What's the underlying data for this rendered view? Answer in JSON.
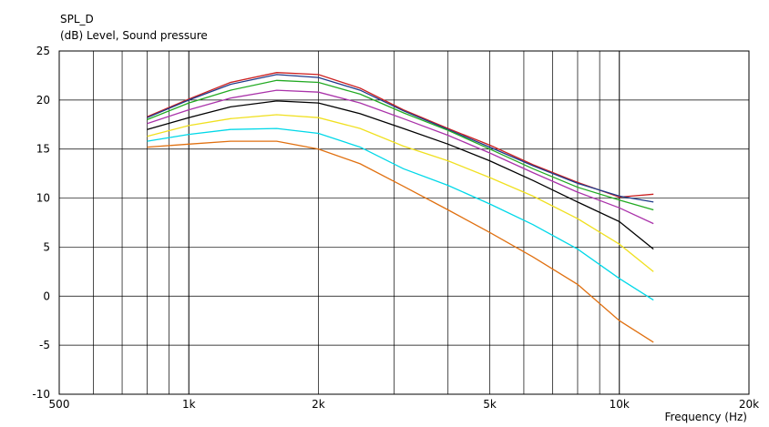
{
  "chart_data": {
    "type": "line",
    "title": "SPL_D",
    "subtitle": "(dB)  Level, Sound pressure",
    "xlabel": "Frequency  (Hz)",
    "ylabel": "",
    "x_scale": "log",
    "xlim": [
      500,
      20000
    ],
    "ylim": [
      -10,
      25
    ],
    "yticks": [
      25,
      20,
      15,
      10,
      5,
      0,
      -5,
      -10
    ],
    "xticks": [
      {
        "value": 500,
        "label": "500"
      },
      {
        "value": 1000,
        "label": "1k"
      },
      {
        "value": 2000,
        "label": "2k"
      },
      {
        "value": 5000,
        "label": "5k"
      },
      {
        "value": 10000,
        "label": "10k"
      },
      {
        "value": 20000,
        "label": "20k"
      }
    ],
    "grid": true,
    "x": [
      800,
      1000,
      1250,
      1600,
      2000,
      2500,
      3150,
      4000,
      5000,
      6300,
      8000,
      10000,
      12000
    ],
    "series": [
      {
        "color": "#cc2020",
        "values": [
          18.3,
          20.1,
          21.8,
          22.8,
          22.6,
          21.2,
          19.0,
          17.1,
          15.4,
          13.4,
          11.6,
          10.1,
          10.4
        ]
      },
      {
        "color": "#1e3a8a",
        "values": [
          18.2,
          20.0,
          21.6,
          22.6,
          22.3,
          21.0,
          18.9,
          17.0,
          15.2,
          13.3,
          11.5,
          10.2,
          9.6
        ]
      },
      {
        "color": "#22aa22",
        "values": [
          18.0,
          19.7,
          21.0,
          22.0,
          21.8,
          20.6,
          18.7,
          16.9,
          15.0,
          13.0,
          11.1,
          9.8,
          8.8
        ]
      },
      {
        "color": "#aa33aa",
        "values": [
          17.6,
          19.0,
          20.2,
          21.0,
          20.8,
          19.7,
          18.1,
          16.4,
          14.6,
          12.6,
          10.6,
          9.0,
          7.4
        ]
      },
      {
        "color": "#000000",
        "values": [
          17.0,
          18.2,
          19.3,
          19.9,
          19.7,
          18.6,
          17.1,
          15.5,
          13.8,
          11.8,
          9.6,
          7.6,
          4.8
        ]
      },
      {
        "color": "#f0e020",
        "values": [
          16.3,
          17.4,
          18.1,
          18.5,
          18.2,
          17.1,
          15.3,
          13.8,
          12.1,
          10.2,
          7.9,
          5.3,
          2.5
        ]
      },
      {
        "color": "#00d8e8",
        "values": [
          15.8,
          16.5,
          17.0,
          17.1,
          16.6,
          15.2,
          13.0,
          11.3,
          9.4,
          7.3,
          4.8,
          1.8,
          -0.4
        ]
      },
      {
        "color": "#e07010",
        "values": [
          15.2,
          15.5,
          15.8,
          15.8,
          15.0,
          13.5,
          11.2,
          8.8,
          6.5,
          4.0,
          1.2,
          -2.5,
          -4.7
        ]
      }
    ]
  }
}
